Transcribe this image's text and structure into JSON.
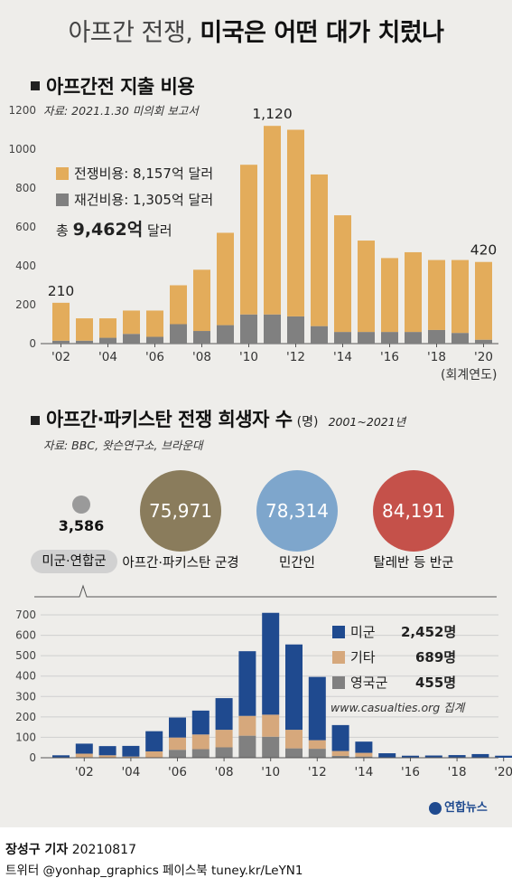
{
  "title": {
    "part1": "아프간 전쟁,",
    "part2": "미국은 어떤 대가 치렀나"
  },
  "section1": {
    "title": "아프간전 지출 비용",
    "source": "자료: 2021.1.30 미의회 보고서",
    "fy_label": "(회계연도)"
  },
  "section2": {
    "title": "아프간·파키스탄 전쟁 희생자 수",
    "unit": "(명)",
    "period": "2001~2021년",
    "source": "자료: BBC, 왓슨연구소, 브라운대"
  },
  "casualty_circles": [
    {
      "value": "3,586",
      "label": "미군·연합군",
      "color": "#9a9a9a"
    },
    {
      "value": "75,971",
      "label": "아프간·파키스탄 군경",
      "color": "#8a7c5c"
    },
    {
      "value": "78,314",
      "label": "민간인",
      "color": "#7ea6cc"
    },
    {
      "value": "84,191",
      "label": "탈레반 등 반군",
      "color": "#c5514a"
    }
  ],
  "chart_data": [
    {
      "type": "bar",
      "stacked": true,
      "ylim": [
        0,
        1200
      ],
      "y_ticks": [
        "0",
        "200",
        "400",
        "600",
        "800",
        "1000",
        "1200"
      ],
      "x_ticks": [
        "'02",
        "'04",
        "'06",
        "'08",
        "'10",
        "'12",
        "'14",
        "'16",
        "'18",
        "'20"
      ],
      "categories": [
        "2002",
        "2003",
        "2004",
        "2005",
        "2006",
        "2007",
        "2008",
        "2009",
        "2010",
        "2011",
        "2012",
        "2013",
        "2014",
        "2015",
        "2016",
        "2017",
        "2018",
        "2019",
        "2020"
      ],
      "totals": [
        210,
        130,
        130,
        170,
        170,
        300,
        380,
        570,
        920,
        1120,
        1100,
        870,
        660,
        530,
        440,
        470,
        430,
        430,
        420
      ],
      "series": [
        {
          "name": "재건비용",
          "color": "#808080",
          "values": [
            15,
            15,
            30,
            50,
            35,
            100,
            65,
            95,
            150,
            150,
            140,
            90,
            60,
            60,
            60,
            60,
            70,
            55,
            20
          ]
        },
        {
          "name": "전쟁비용",
          "color": "#e3ac5b",
          "values": [
            195,
            115,
            100,
            120,
            135,
            200,
            315,
            475,
            770,
            970,
            960,
            780,
            600,
            470,
            380,
            410,
            360,
            375,
            400
          ]
        }
      ],
      "legend": [
        {
          "label": "전쟁비용: 8,157억 달러",
          "color": "#e3ac5b"
        },
        {
          "label": "재건비용: 1,305억 달러",
          "color": "#808080"
        }
      ],
      "total_prefix": "총",
      "total_value": "9,462억",
      "total_suffix": "달러",
      "annotations": [
        {
          "index": 0,
          "text": "210"
        },
        {
          "index": 9,
          "text": "1,120"
        },
        {
          "index": 18,
          "text": "420"
        }
      ]
    },
    {
      "type": "bar",
      "stacked": true,
      "ylim": [
        0,
        700
      ],
      "y_ticks": [
        "0",
        "100",
        "200",
        "300",
        "400",
        "500",
        "600",
        "700"
      ],
      "x_ticks": [
        "'02",
        "'04",
        "'06",
        "'08",
        "'10",
        "'12",
        "'14",
        "'16",
        "'18",
        "'20"
      ],
      "categories": [
        "2001",
        "2002",
        "2003",
        "2004",
        "2005",
        "2006",
        "2007",
        "2008",
        "2009",
        "2010",
        "2011",
        "2012",
        "2013",
        "2014",
        "2015",
        "2016",
        "2017",
        "2018",
        "2019",
        "2020",
        "2021"
      ],
      "series": [
        {
          "name": "영국군",
          "color": "#808080",
          "values": [
            0,
            3,
            0,
            0,
            1,
            39,
            42,
            51,
            108,
            103,
            46,
            44,
            9,
            6,
            0,
            0,
            0,
            0,
            0,
            0,
            0
          ]
        },
        {
          "name": "기타",
          "color": "#d6a87c",
          "values": [
            0,
            17,
            12,
            6,
            30,
            60,
            72,
            86,
            97,
            108,
            91,
            42,
            24,
            18,
            0,
            1,
            0,
            0,
            1,
            0,
            0
          ]
        },
        {
          "name": "미군",
          "color": "#1f4a8f",
          "values": [
            12,
            49,
            45,
            52,
            99,
            98,
            117,
            155,
            317,
            499,
            418,
            310,
            127,
            55,
            22,
            9,
            11,
            13,
            17,
            10,
            11
          ]
        }
      ],
      "legend": [
        {
          "name": "미군",
          "value": "2,452명",
          "color": "#1f4a8f"
        },
        {
          "name": "기타",
          "value": "689명",
          "color": "#d6a87c"
        },
        {
          "name": "영국군",
          "value": "455명",
          "color": "#808080"
        }
      ],
      "source": "www.casualties.org 집계"
    }
  ],
  "logo": {
    "text": "연합뉴스"
  },
  "footer": {
    "reporter": "장성구 기자",
    "date": "20210817",
    "sns": "트위터 @yonhap_graphics  페이스북 tuney.kr/LeYN1"
  }
}
